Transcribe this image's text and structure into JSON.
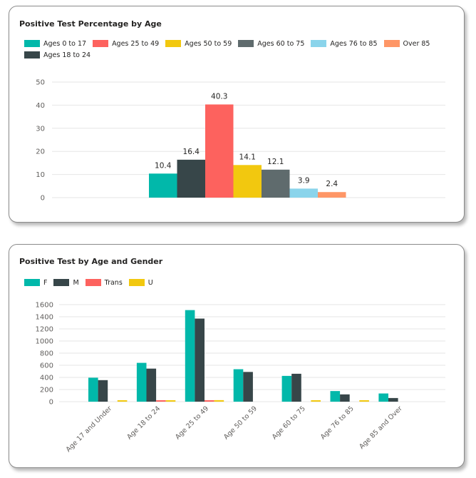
{
  "chart_data": [
    {
      "type": "bar",
      "title": "Positive Test Percentage by Age",
      "ylim": [
        0,
        50
      ],
      "yticks": [
        "0",
        "10",
        "20",
        "30",
        "40",
        "50"
      ],
      "legend_position": "top-left",
      "grid": true,
      "series": [
        {
          "name": "Ages 0 to 17",
          "value": 10.4,
          "label": "10.4",
          "color": "#01B8AA"
        },
        {
          "name": "Ages 18 to 24",
          "value": 16.4,
          "label": "16.4",
          "color": "#374649"
        },
        {
          "name": "Ages 25 to 49",
          "value": 40.3,
          "label": "40.3",
          "color": "#FD625E"
        },
        {
          "name": "Ages 50 to 59",
          "value": 14.1,
          "label": "14.1",
          "color": "#F2C80F"
        },
        {
          "name": "Ages 60 to 75",
          "value": 12.1,
          "label": "12.1",
          "color": "#5F6B6D"
        },
        {
          "name": "Ages 76 to 85",
          "value": 3.9,
          "label": "3.9",
          "color": "#8AD4EB"
        },
        {
          "name": "Over 85",
          "value": 2.4,
          "label": "2.4",
          "color": "#FE9666"
        }
      ],
      "legend_order": [
        0,
        2,
        3,
        4,
        5,
        6,
        1
      ]
    },
    {
      "type": "bar",
      "title": "Positive Test by Age and Gender",
      "ylim": [
        0,
        1600
      ],
      "yticks": [
        "0",
        "200",
        "400",
        "600",
        "800",
        "1000",
        "1200",
        "1400",
        "1600"
      ],
      "legend_position": "top-left",
      "grid": true,
      "categories": [
        "Age 17 and Under",
        "Age 18 to 24",
        "Age 25 to 49",
        "Age 50 to 59",
        "Age 60 to 75",
        "Age 76 to 85",
        "Age 85 and Over"
      ],
      "series": [
        {
          "name": "F",
          "color": "#01B8AA",
          "values": [
            395,
            640,
            1510,
            535,
            425,
            175,
            135
          ]
        },
        {
          "name": "M",
          "color": "#374649",
          "values": [
            355,
            545,
            1370,
            490,
            460,
            120,
            60
          ]
        },
        {
          "name": "Trans",
          "color": "#FD625E",
          "values": [
            0,
            12,
            15,
            0,
            0,
            0,
            0
          ]
        },
        {
          "name": "U",
          "color": "#F2C80F",
          "values": [
            18,
            22,
            25,
            0,
            20,
            15,
            0
          ]
        }
      ]
    }
  ]
}
